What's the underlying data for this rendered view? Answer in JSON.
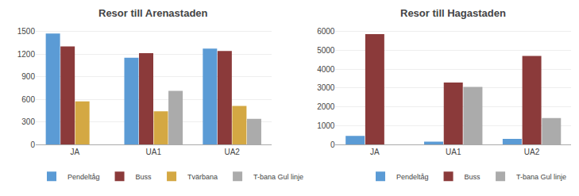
{
  "chart_data": [
    {
      "type": "bar",
      "title": "Resor till Arenastaden",
      "categories": [
        "JA",
        "UA1",
        "UA2"
      ],
      "series": [
        {
          "name": "Pendeltåg",
          "color": "#5B9BD5",
          "values": [
            1470,
            1150,
            1270
          ]
        },
        {
          "name": "Buss",
          "color": "#8B3A3A",
          "values": [
            1300,
            1210,
            1240
          ]
        },
        {
          "name": "Tvärbana",
          "color": "#D4A843",
          "values": [
            570,
            440,
            510
          ]
        },
        {
          "name": "T-bana Gul linje",
          "color": "#ABABAB",
          "values": [
            0,
            710,
            340
          ]
        }
      ],
      "ylim": [
        0,
        1600
      ],
      "yticks": [
        0,
        300,
        600,
        900,
        1200,
        1500
      ],
      "grid": true,
      "legend": "bottom"
    },
    {
      "type": "bar",
      "title": "Resor till Hagastaden",
      "categories": [
        "JA",
        "UA1",
        "UA2"
      ],
      "series": [
        {
          "name": "Pendeltåg",
          "color": "#5B9BD5",
          "values": [
            450,
            150,
            300
          ]
        },
        {
          "name": "Buss",
          "color": "#8B3A3A",
          "values": [
            5850,
            3280,
            4700
          ]
        },
        {
          "name": "T-bana Gul linje",
          "color": "#ABABAB",
          "values": [
            0,
            3050,
            1400
          ]
        }
      ],
      "ylim": [
        0,
        6400
      ],
      "yticks": [
        0,
        1000,
        2000,
        3000,
        4000,
        5000,
        6000
      ],
      "grid": true,
      "legend": "bottom"
    }
  ]
}
